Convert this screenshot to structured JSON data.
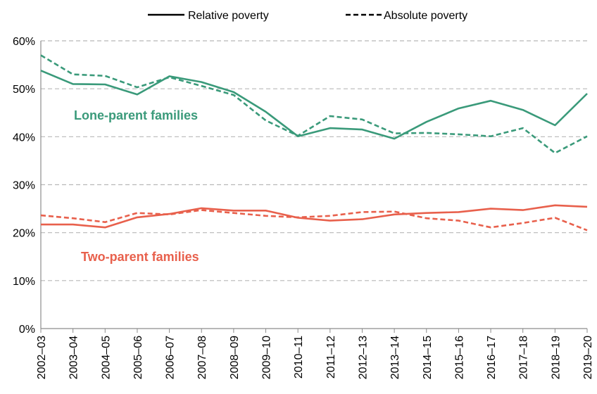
{
  "chart_data": {
    "type": "line",
    "title": "",
    "xlabel": "",
    "ylabel": "",
    "ylim": [
      0,
      60
    ],
    "y_ticks": [
      "0%",
      "10%",
      "20%",
      "30%",
      "40%",
      "50%",
      "60%"
    ],
    "y_tick_values": [
      0,
      10,
      20,
      30,
      40,
      50,
      60
    ],
    "grid": "horizontal dashed",
    "legend_position": "top",
    "legend": [
      {
        "label": "Relative poverty",
        "style": "solid"
      },
      {
        "label": "Absolute poverty",
        "style": "dashed"
      }
    ],
    "categories": [
      "2002–03",
      "2003–04",
      "2004–05",
      "2005–06",
      "2006–07",
      "2007–08",
      "2008–09",
      "2009–10",
      "2010–11",
      "2011–12",
      "2012–13",
      "2013–14",
      "2014–15",
      "2015–16",
      "2016–17",
      "2017–18",
      "2018–19",
      "2019–20"
    ],
    "series": [
      {
        "group": "Lone-parent families",
        "measure": "Relative poverty",
        "color": "#3a9a7a",
        "dash": false,
        "values": [
          53.8,
          51.0,
          50.9,
          48.8,
          52.6,
          51.4,
          49.3,
          45.2,
          40.1,
          41.8,
          41.5,
          39.6,
          43.1,
          45.9,
          47.5,
          45.6,
          42.4,
          49.0
        ]
      },
      {
        "group": "Lone-parent families",
        "measure": "Absolute poverty",
        "color": "#3a9a7a",
        "dash": true,
        "values": [
          57.0,
          53.0,
          52.7,
          50.3,
          52.4,
          50.6,
          48.7,
          43.4,
          40.2,
          44.3,
          43.6,
          40.7,
          40.8,
          40.5,
          40.1,
          41.8,
          36.6,
          40.1
        ]
      },
      {
        "group": "Two-parent families",
        "measure": "Relative poverty",
        "color": "#e8604c",
        "dash": false,
        "values": [
          21.7,
          21.7,
          21.1,
          23.2,
          23.9,
          25.1,
          24.6,
          24.6,
          23.1,
          22.5,
          22.8,
          23.8,
          24.1,
          24.3,
          25.0,
          24.7,
          25.7,
          25.4
        ]
      },
      {
        "group": "Two-parent families",
        "measure": "Absolute poverty",
        "color": "#e8604c",
        "dash": true,
        "values": [
          23.6,
          23.0,
          22.2,
          24.1,
          23.8,
          24.7,
          24.1,
          23.5,
          23.2,
          23.5,
          24.3,
          24.4,
          23.0,
          22.5,
          21.1,
          22.0,
          23.1,
          20.5
        ]
      }
    ],
    "annotations": [
      {
        "text": "Lone-parent families",
        "color": "#3a9a7a"
      },
      {
        "text": "Two-parent families",
        "color": "#e8604c"
      }
    ]
  }
}
